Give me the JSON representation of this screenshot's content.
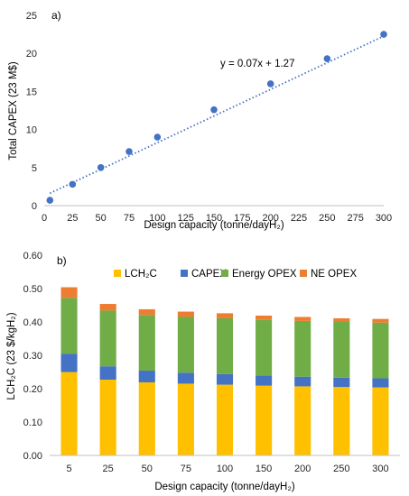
{
  "chart_data": [
    {
      "type": "scatter",
      "panel_label": "a)",
      "xlabel": "Design capacity (tonne/dayH₂)",
      "ylabel": "Total CAPEX (23 M$)",
      "xlim": [
        0,
        300
      ],
      "ylim": [
        0,
        25
      ],
      "xticks": [
        0,
        25,
        50,
        75,
        100,
        125,
        150,
        175,
        200,
        225,
        250,
        275,
        300
      ],
      "yticks": [
        0,
        5,
        10,
        15,
        20,
        25
      ],
      "grid": false,
      "points": [
        {
          "x": 5,
          "y": 0.7
        },
        {
          "x": 25,
          "y": 2.8
        },
        {
          "x": 50,
          "y": 5.0
        },
        {
          "x": 75,
          "y": 7.1
        },
        {
          "x": 100,
          "y": 9.0
        },
        {
          "x": 150,
          "y": 12.6
        },
        {
          "x": 200,
          "y": 16.0
        },
        {
          "x": 250,
          "y": 19.3
        },
        {
          "x": 300,
          "y": 22.5
        }
      ],
      "trendline": {
        "slope": 0.07,
        "intercept": 1.27,
        "x_range": [
          5,
          300
        ],
        "style": "dotted",
        "equation": "y = 0.07x + 1.27"
      },
      "marker_color": "#4472C4"
    },
    {
      "type": "bar",
      "stacked": true,
      "panel_label": "b)",
      "xlabel": "Design capacity (tonne/dayH₂)",
      "ylabel": "LCH₂C (23 $/kgH₂)",
      "ylim": [
        0,
        0.6
      ],
      "yticks": [
        "0.00",
        "0.10",
        "0.20",
        "0.30",
        "0.40",
        "0.50",
        "0.60"
      ],
      "grid": false,
      "legend_position": "top",
      "categories": [
        "5",
        "25",
        "50",
        "75",
        "100",
        "150",
        "200",
        "250",
        "300"
      ],
      "series": [
        {
          "name": "LCH₂C",
          "color": "#FFC000",
          "values": [
            0.25,
            0.227,
            0.219,
            0.215,
            0.212,
            0.209,
            0.207,
            0.205,
            0.204
          ]
        },
        {
          "name": "CAPEX",
          "color": "#4472C4",
          "values": [
            0.055,
            0.04,
            0.035,
            0.033,
            0.032,
            0.03,
            0.029,
            0.028,
            0.027
          ]
        },
        {
          "name": "Energy OPEX",
          "color": "#70AD47",
          "values": [
            0.167,
            0.167,
            0.167,
            0.167,
            0.167,
            0.167,
            0.167,
            0.167,
            0.167
          ]
        },
        {
          "name": "NE OPEX",
          "color": "#ED7D31",
          "values": [
            0.032,
            0.02,
            0.017,
            0.016,
            0.015,
            0.013,
            0.012,
            0.011,
            0.011
          ]
        }
      ]
    }
  ]
}
